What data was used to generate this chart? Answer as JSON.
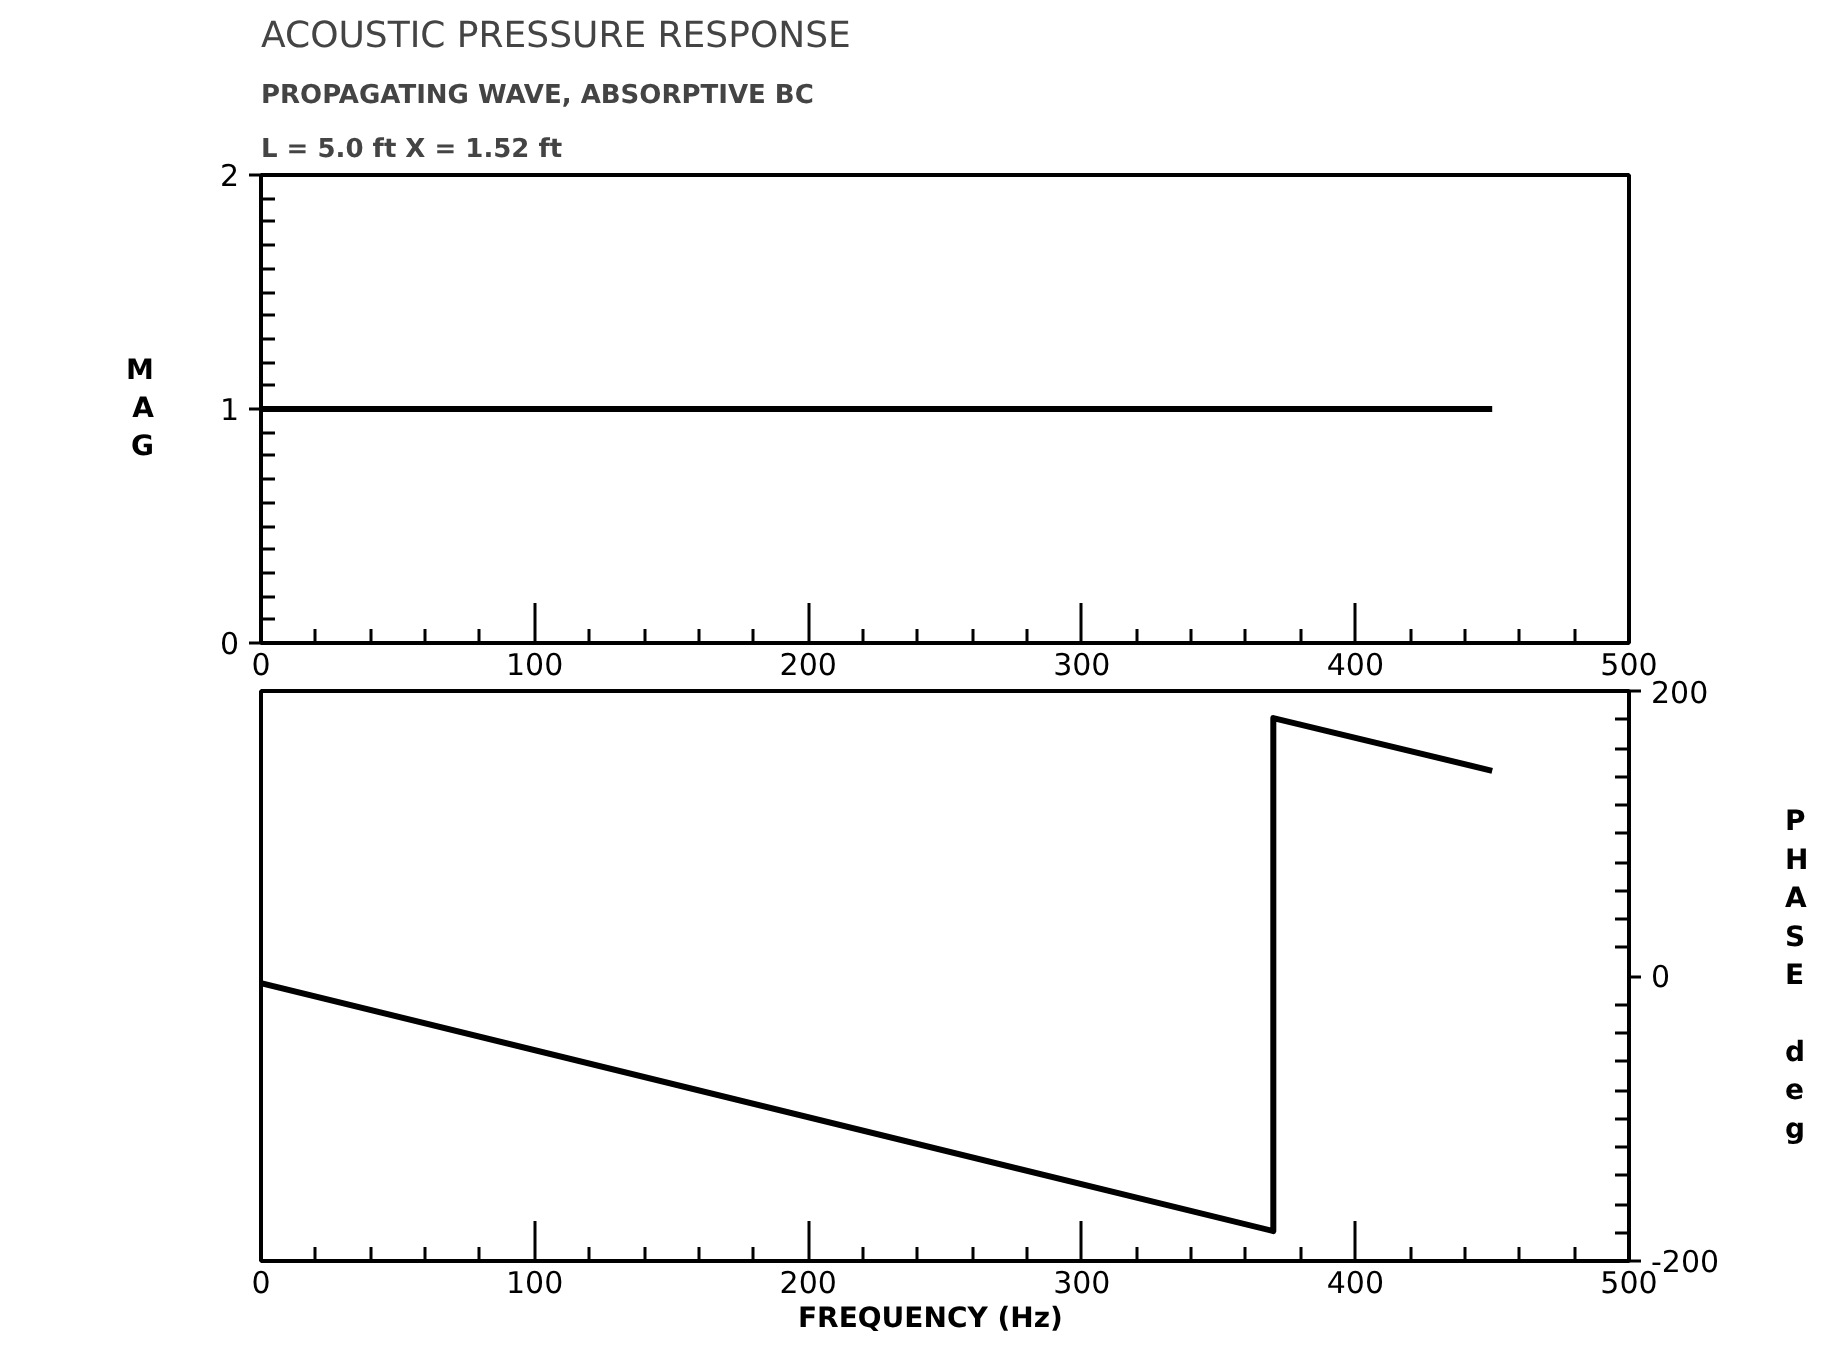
{
  "chart_data": [
    {
      "type": "line",
      "title": "ACOUSTIC PRESSURE RESPONSE",
      "subtitle": "PROPAGATING WAVE, ABSORPTIVE BC",
      "annotations": [
        "L = 5.0 ft  X = 1.52 ft"
      ],
      "ylabel": "MAG",
      "series": [
        {
          "color": "#000000",
          "x": [
            0,
            450
          ],
          "values": [
            1,
            1
          ]
        }
      ],
      "xlim": [
        0,
        500
      ],
      "xticks": [
        0,
        100,
        200,
        300,
        400,
        500
      ],
      "ylim": [
        0,
        2
      ],
      "yticks": [
        0,
        1,
        2
      ],
      "grid": false
    },
    {
      "type": "line",
      "xlabel": "FREQUENCY    (Hz)",
      "y2label": "PHASE deg",
      "series": [
        {
          "color": "#000000",
          "axis": "y2",
          "x": [
            0,
            370,
            370,
            450
          ],
          "values": [
            -5,
            -179,
            181,
            144
          ]
        }
      ],
      "xlim": [
        0,
        500
      ],
      "xticks": [
        0,
        100,
        200,
        300,
        400,
        500
      ],
      "y2lim": [
        -200,
        200
      ],
      "y2ticks": [
        -200,
        0,
        200
      ],
      "grid": false
    }
  ]
}
